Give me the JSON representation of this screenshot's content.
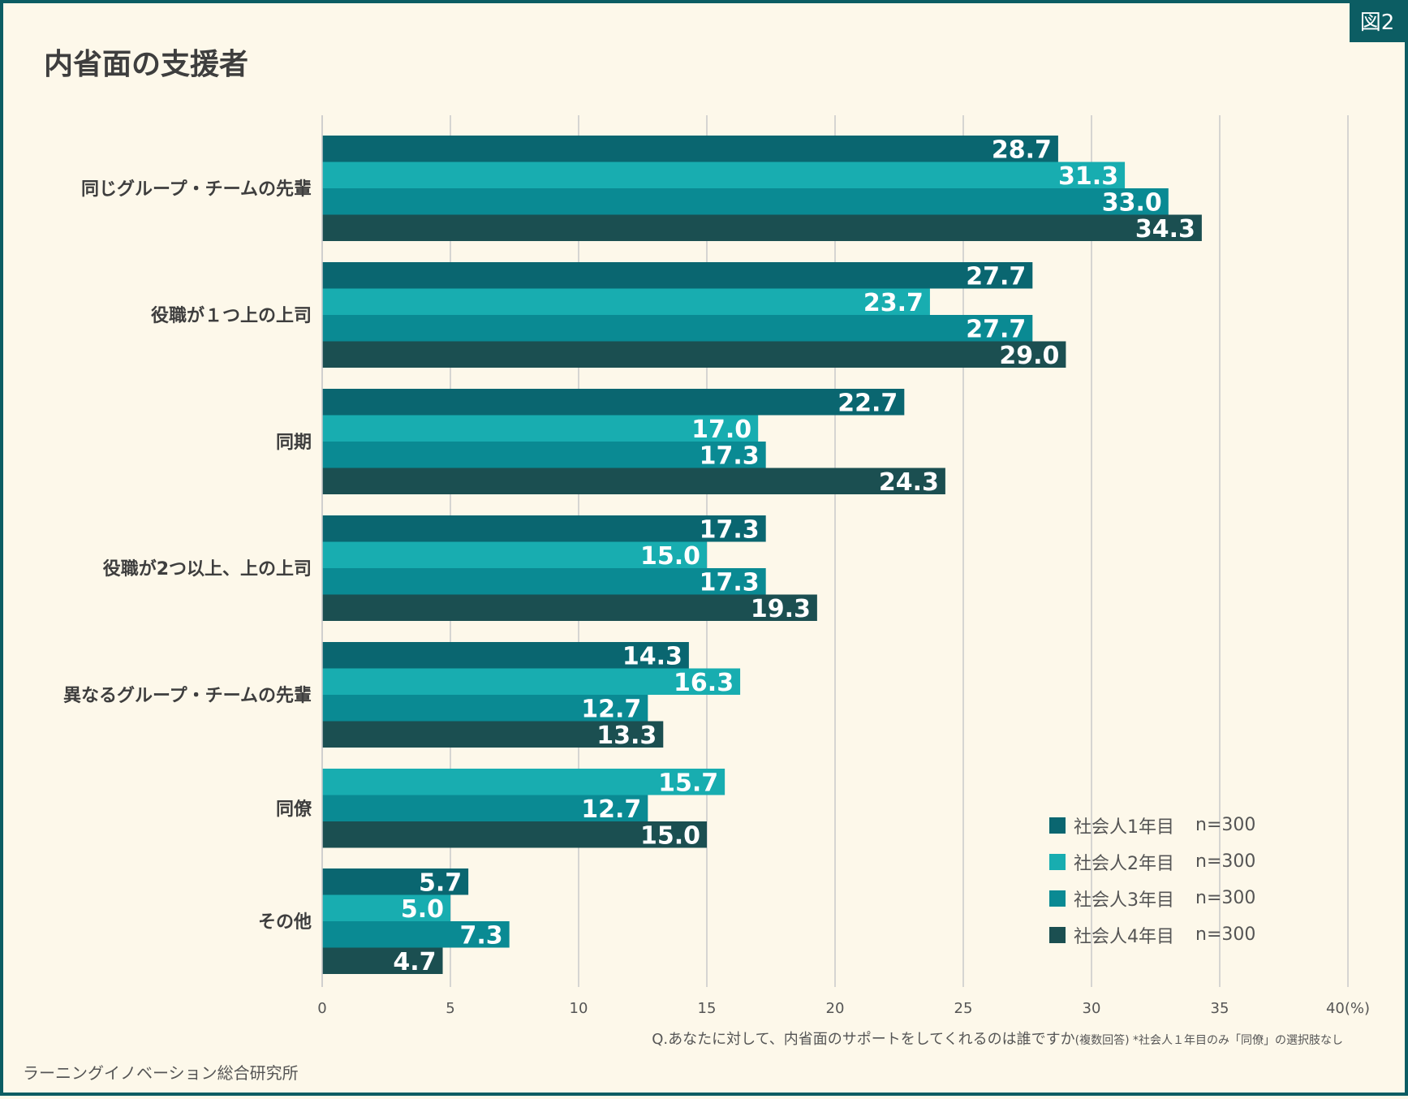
{
  "badge": "図2",
  "title": "内省面の支援者",
  "footnote": {
    "question": "Q.あなたに対して、内省面のサポートをしてくれるのは誰ですか",
    "note": "(複数回答) *社会人１年目のみ「同僚」の選択肢なし"
  },
  "source": "ラーニングイノベーション総合研究所",
  "colors": {
    "series1": "#0a6670",
    "series2": "#18adb0",
    "series3": "#0a8a93",
    "series4": "#1b4f51",
    "grid": "#c9c9c9"
  },
  "chart_data": {
    "type": "bar",
    "orientation": "horizontal",
    "title": "内省面の支援者",
    "xlabel": "",
    "ylabel": "",
    "xlim": [
      0,
      40
    ],
    "x_ticks": [
      "0",
      "5",
      "10",
      "15",
      "20",
      "25",
      "30",
      "35",
      "40(%)"
    ],
    "categories": [
      "同じグループ・チームの先輩",
      "役職が１つ上の上司",
      "同期",
      "役職が2つ以上、上の上司",
      "異なるグループ・チームの先輩",
      "同僚",
      "その他"
    ],
    "series": [
      {
        "name": "社会人1年目",
        "n": "n=300",
        "values": [
          28.7,
          27.7,
          22.7,
          17.3,
          14.3,
          null,
          5.7
        ]
      },
      {
        "name": "社会人2年目",
        "n": "n=300",
        "values": [
          31.3,
          23.7,
          17.0,
          15.0,
          16.3,
          15.7,
          5.0
        ]
      },
      {
        "name": "社会人3年目",
        "n": "n=300",
        "values": [
          33.0,
          27.7,
          17.3,
          17.3,
          12.7,
          12.7,
          7.3
        ]
      },
      {
        "name": "社会人4年目",
        "n": "n=300",
        "values": [
          34.3,
          29.0,
          24.3,
          19.3,
          13.3,
          15.0,
          4.7
        ]
      }
    ],
    "grid": true,
    "legend_position": "bottom-right"
  }
}
